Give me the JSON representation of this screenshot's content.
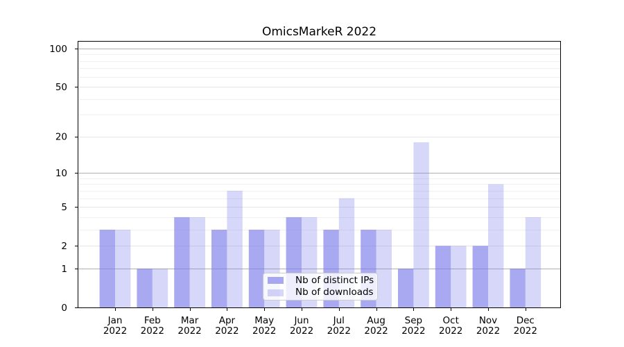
{
  "chart_data": {
    "type": "bar",
    "title": "OmicsMarkeR 2022",
    "categories": [
      {
        "month": "Jan",
        "year": "2022"
      },
      {
        "month": "Feb",
        "year": "2022"
      },
      {
        "month": "Mar",
        "year": "2022"
      },
      {
        "month": "Apr",
        "year": "2022"
      },
      {
        "month": "May",
        "year": "2022"
      },
      {
        "month": "Jun",
        "year": "2022"
      },
      {
        "month": "Jul",
        "year": "2022"
      },
      {
        "month": "Aug",
        "year": "2022"
      },
      {
        "month": "Sep",
        "year": "2022"
      },
      {
        "month": "Oct",
        "year": "2022"
      },
      {
        "month": "Nov",
        "year": "2022"
      },
      {
        "month": "Dec",
        "year": "2022"
      }
    ],
    "series": [
      {
        "name": "Nb of distinct IPs",
        "color": "#7b7bea",
        "opacity": 0.65,
        "values": [
          3,
          1,
          4,
          3,
          3,
          4,
          3,
          3,
          1,
          2,
          2,
          1
        ]
      },
      {
        "name": "Nb of downloads",
        "color": "#7b7bea",
        "opacity": 0.3,
        "values": [
          3,
          1,
          4,
          7,
          3,
          4,
          6,
          3,
          18,
          2,
          8,
          4
        ]
      }
    ],
    "yscale": "log10(value+1)",
    "yticks": [
      0,
      1,
      2,
      5,
      10,
      20,
      50,
      100
    ],
    "minor_gridline_values": [
      3,
      4,
      6,
      7,
      8,
      9,
      30,
      40,
      60,
      70,
      80,
      90
    ],
    "ylim": [
      0,
      113
    ],
    "xlabel": "",
    "ylabel": "",
    "grid": true,
    "legend_position": "lower-center-inside",
    "colors": {
      "grid_decade": "#b0b0b0",
      "grid_labeled": "#e5e5e5",
      "grid_minor": "#f0f0f0",
      "spine": "#000000",
      "text": "#000000",
      "background": "#ffffff"
    }
  }
}
